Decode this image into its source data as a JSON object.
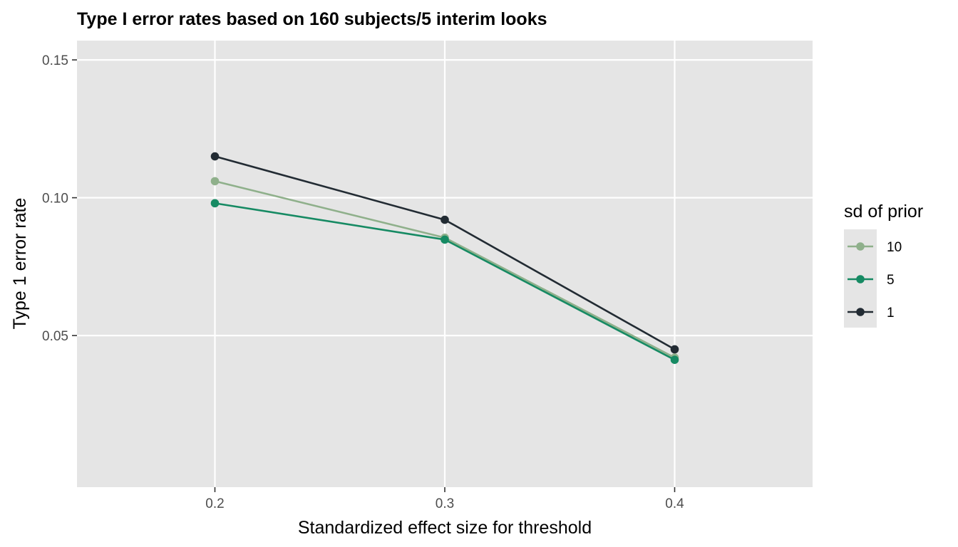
{
  "chart_data": {
    "type": "line",
    "title": "Type I error rates based on 160 subjects/5 interim looks",
    "xlabel": "Standardized effect size for threshold",
    "ylabel": "Type 1 error rate",
    "x": [
      0.2,
      0.3,
      0.4
    ],
    "x_tick_labels": [
      "0.2",
      "0.3",
      "0.4"
    ],
    "y_tick_labels": [
      "0.05",
      "0.10",
      "0.15"
    ],
    "y_ticks": [
      0.05,
      0.1,
      0.15
    ],
    "xlim": [
      0.14,
      0.46
    ],
    "ylim": [
      -0.005,
      0.157
    ],
    "grid": true,
    "legend": {
      "title": "sd of prior",
      "placement": "right"
    },
    "series": [
      {
        "name": "10",
        "color": "#8fb08b",
        "values": [
          0.106,
          0.0855,
          0.042
        ]
      },
      {
        "name": "5",
        "color": "#168a63",
        "values": [
          0.098,
          0.0848,
          0.0412
        ]
      },
      {
        "name": "1",
        "color": "#222b33",
        "values": [
          0.115,
          0.092,
          0.045
        ]
      }
    ],
    "panel_background": "#e5e5e5",
    "grid_color": "#ffffff"
  }
}
